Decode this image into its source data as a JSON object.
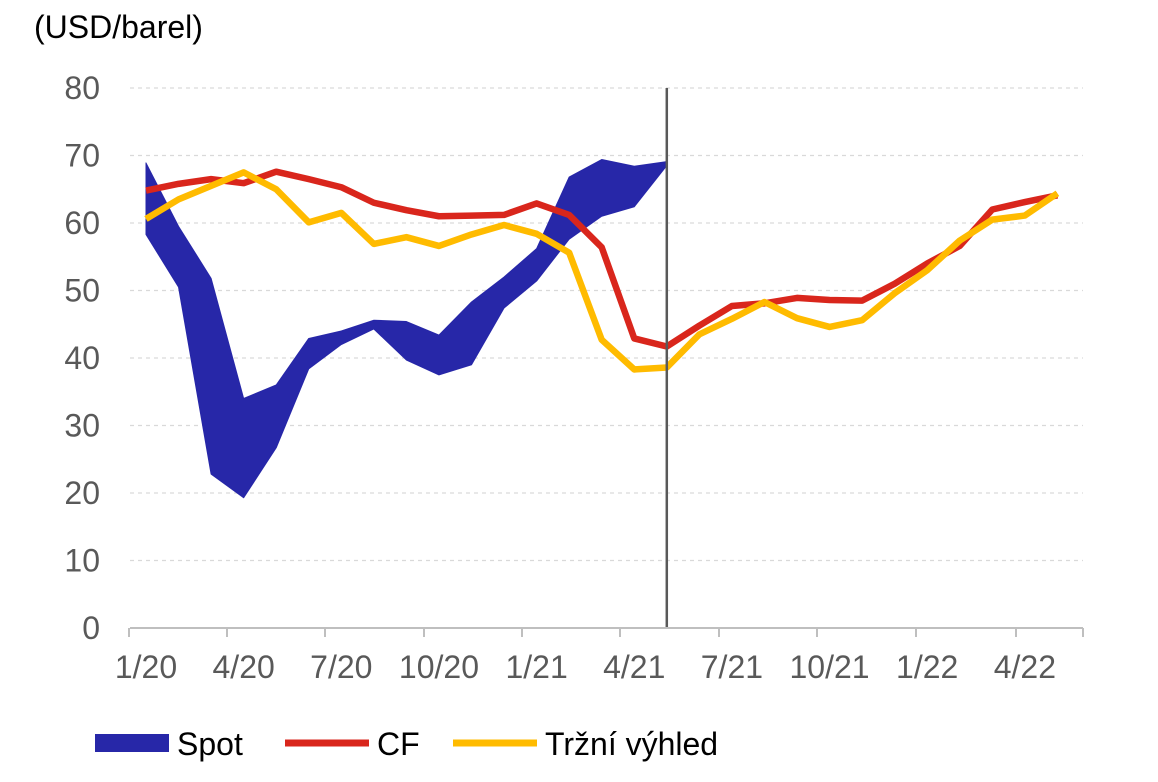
{
  "chart_data": {
    "type": "line",
    "unit_label": "(USD/barel)",
    "ylim": [
      0,
      80
    ],
    "y_ticks": [
      "0",
      "10",
      "20",
      "30",
      "40",
      "50",
      "60",
      "70",
      "80"
    ],
    "x_tick_labels": [
      "1/20",
      "4/20",
      "7/20",
      "10/20",
      "1/21",
      "4/21",
      "7/21",
      "10/21",
      "1/22",
      "4/22"
    ],
    "forecast_start_month": 16,
    "series": [
      {
        "name": "Spot",
        "kind": "band",
        "color": "#2727a8",
        "x": [
          0,
          1,
          2,
          3,
          4,
          5,
          6,
          7,
          8,
          9,
          10,
          11,
          12,
          13,
          14,
          15,
          16
        ],
        "upper": [
          68.9,
          59.5,
          51.8,
          34.0,
          36.0,
          42.9,
          44.0,
          45.6,
          45.4,
          43.4,
          48.3,
          52.0,
          56.2,
          66.8,
          69.4,
          68.4,
          69.1
        ],
        "lower": [
          58.3,
          50.5,
          22.8,
          19.3,
          26.7,
          38.4,
          42.0,
          44.3,
          39.7,
          37.5,
          39.0,
          47.4,
          51.4,
          57.6,
          61.0,
          62.4,
          68.5
        ]
      },
      {
        "name": "CF",
        "kind": "line",
        "color": "#d9261c",
        "x": [
          0,
          1,
          2,
          3,
          4,
          5,
          6,
          7,
          8,
          9,
          10,
          11,
          12,
          13,
          14,
          15,
          16,
          17,
          18,
          19,
          20,
          21,
          22,
          23,
          24,
          25,
          26,
          27,
          28
        ],
        "values": [
          64.8,
          65.8,
          66.5,
          65.9,
          67.6,
          66.5,
          65.3,
          63.0,
          61.9,
          61.0,
          61.1,
          61.2,
          62.9,
          61.2,
          56.4,
          42.9,
          41.7,
          44.8,
          47.7,
          48.1,
          48.9,
          48.6,
          48.5,
          51.0,
          54.0,
          56.6,
          62.0,
          63.1,
          64.1
        ]
      },
      {
        "name": "Tržní výhled",
        "kind": "line",
        "color": "#ffbb00",
        "x": [
          0,
          1,
          2,
          3,
          4,
          5,
          6,
          7,
          8,
          9,
          10,
          11,
          12,
          13,
          14,
          15,
          16,
          17,
          18,
          19,
          20,
          21,
          22,
          23,
          24,
          25,
          26,
          27,
          28
        ],
        "values": [
          60.6,
          63.5,
          65.5,
          67.5,
          65.0,
          60.1,
          61.5,
          56.9,
          57.9,
          56.6,
          58.3,
          59.7,
          58.4,
          55.6,
          42.7,
          38.3,
          38.6,
          43.5,
          45.8,
          48.3,
          45.9,
          44.6,
          45.6,
          49.6,
          53.0,
          57.4,
          60.5,
          61.1,
          64.4
        ]
      }
    ],
    "legend": [
      {
        "label": "Spot",
        "color": "#2727a8",
        "kind": "band"
      },
      {
        "label": "CF",
        "color": "#d9261c",
        "kind": "line"
      },
      {
        "label": "Tržní výhled",
        "color": "#ffbb00",
        "kind": "line"
      }
    ],
    "legend_position": "bottom-left",
    "grid": true
  }
}
